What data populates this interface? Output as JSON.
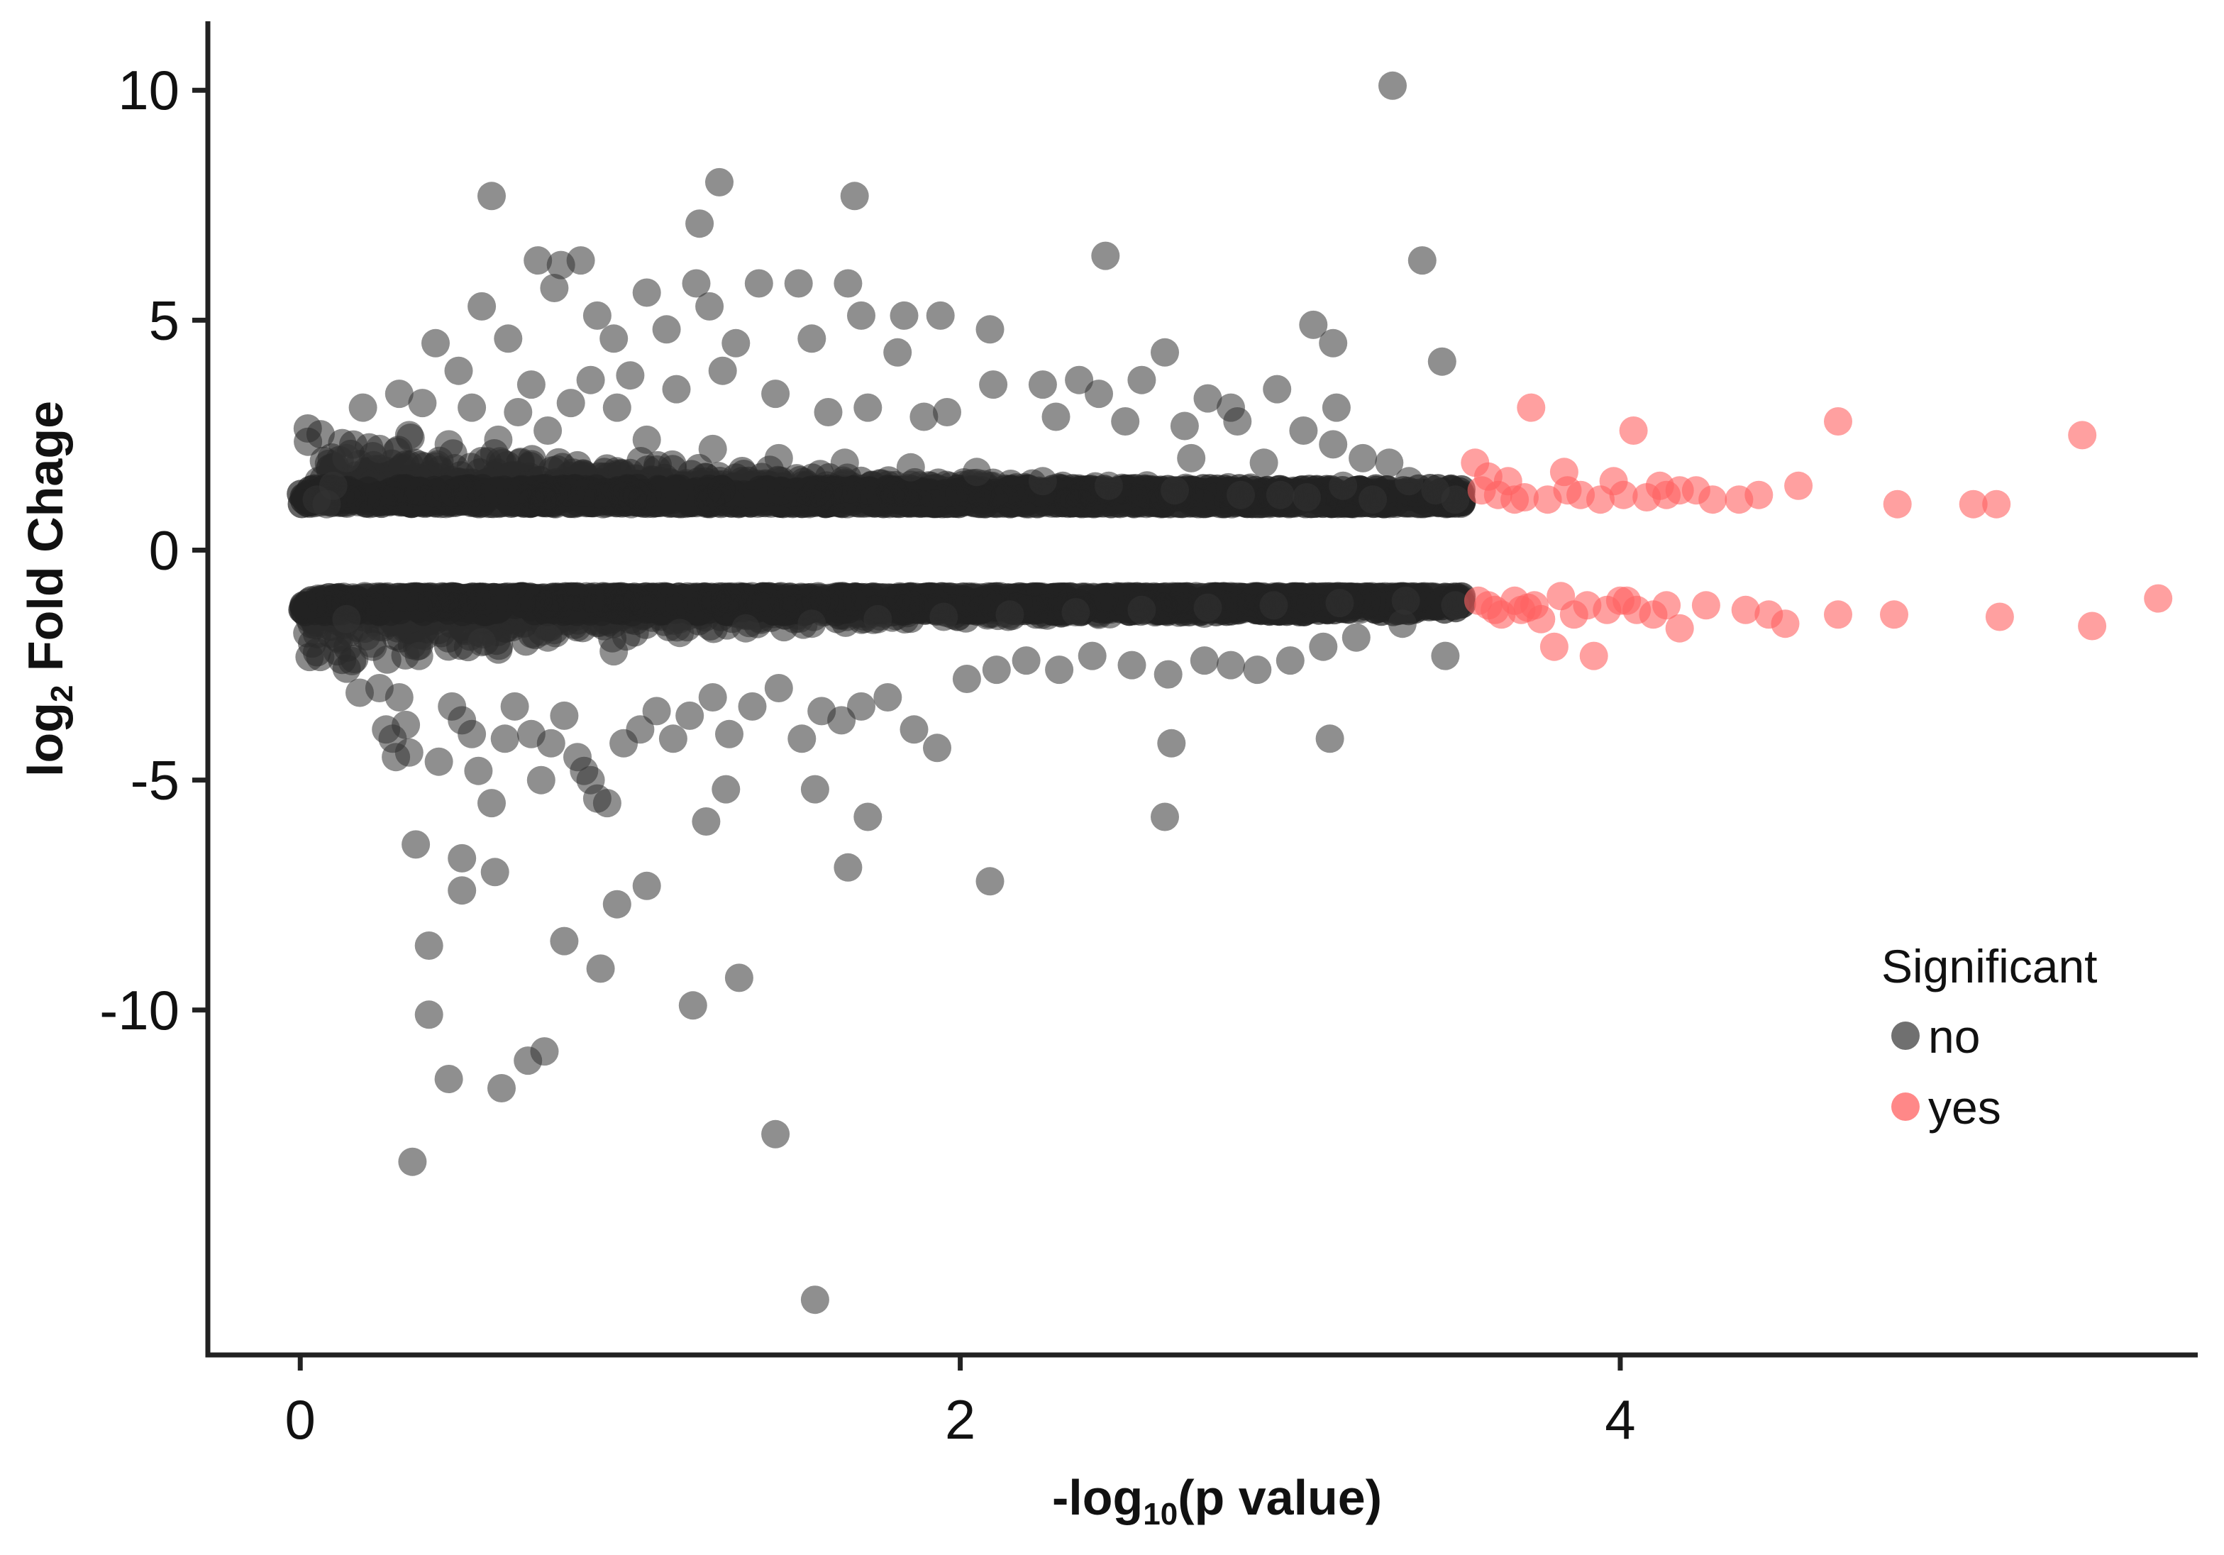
{
  "chart_data": {
    "type": "scatter",
    "title": "",
    "xlabel": {
      "prefix": "-log",
      "sub": "10",
      "suffix": "(p value)"
    },
    "ylabel": {
      "prefix": "log",
      "sub": "2",
      "suffix": " Fold Chage"
    },
    "xlim": [
      -0.28,
      5.75
    ],
    "ylim": [
      -17.5,
      11.5
    ],
    "x_ticks": [
      0,
      2,
      4
    ],
    "x_tick_labels": [
      "0",
      "2",
      "4"
    ],
    "y_ticks": [
      10,
      5,
      0,
      -5,
      -10
    ],
    "y_tick_labels": [
      "10",
      "5",
      "0",
      "-5",
      "-10"
    ],
    "grid": false,
    "legend": {
      "title": "Significant",
      "position": "right",
      "entries": [
        {
          "label": "no",
          "color": "#333333"
        },
        {
          "label": "yes",
          "color": "#ff6060"
        }
      ]
    },
    "series": [
      {
        "name": "no",
        "color": "#333333",
        "opacity": 0.55,
        "points": [
          [
            3.31,
            10.1
          ],
          [
            0.58,
            7.7
          ],
          [
            1.27,
            8.0
          ],
          [
            1.68,
            7.7
          ],
          [
            1.21,
            7.1
          ],
          [
            2.44,
            6.4
          ],
          [
            3.4,
            6.3
          ],
          [
            0.72,
            6.3
          ],
          [
            0.79,
            6.2
          ],
          [
            0.85,
            6.3
          ],
          [
            0.77,
            5.7
          ],
          [
            0.55,
            5.3
          ],
          [
            1.05,
            5.6
          ],
          [
            1.2,
            5.8
          ],
          [
            1.39,
            5.8
          ],
          [
            1.51,
            5.8
          ],
          [
            1.66,
            5.8
          ],
          [
            1.7,
            5.1
          ],
          [
            1.83,
            5.1
          ],
          [
            1.94,
            5.1
          ],
          [
            0.9,
            5.1
          ],
          [
            1.11,
            4.8
          ],
          [
            1.24,
            5.3
          ],
          [
            3.07,
            4.9
          ],
          [
            3.13,
            4.5
          ],
          [
            3.46,
            4.1
          ],
          [
            0.41,
            4.5
          ],
          [
            0.63,
            4.6
          ],
          [
            0.95,
            4.6
          ],
          [
            1.32,
            4.5
          ],
          [
            1.55,
            4.6
          ],
          [
            2.09,
            4.8
          ],
          [
            2.62,
            4.3
          ],
          [
            1.81,
            4.3
          ],
          [
            2.25,
            3.6
          ],
          [
            2.36,
            3.7
          ],
          [
            2.55,
            3.7
          ],
          [
            2.75,
            3.3
          ],
          [
            2.82,
            3.1
          ],
          [
            2.96,
            3.5
          ],
          [
            3.14,
            3.1
          ],
          [
            2.42,
            3.4
          ],
          [
            2.1,
            3.6
          ],
          [
            1.96,
            3.0
          ],
          [
            1.89,
            2.9
          ],
          [
            1.72,
            3.1
          ],
          [
            1.6,
            3.0
          ],
          [
            2.29,
            2.9
          ],
          [
            2.5,
            2.8
          ],
          [
            2.68,
            2.7
          ],
          [
            2.84,
            2.8
          ],
          [
            3.04,
            2.6
          ],
          [
            0.48,
            3.9
          ],
          [
            0.7,
            3.6
          ],
          [
            0.88,
            3.7
          ],
          [
            1.0,
            3.8
          ],
          [
            1.14,
            3.5
          ],
          [
            1.28,
            3.9
          ],
          [
            1.44,
            3.4
          ],
          [
            0.3,
            3.4
          ],
          [
            0.37,
            3.2
          ],
          [
            0.52,
            3.1
          ],
          [
            0.66,
            3.0
          ],
          [
            0.82,
            3.2
          ],
          [
            0.96,
            3.1
          ],
          [
            3.13,
            2.3
          ],
          [
            3.22,
            2.0
          ],
          [
            3.3,
            1.9
          ],
          [
            3.36,
            1.5
          ],
          [
            3.44,
            1.3
          ],
          [
            3.5,
            1.1
          ],
          [
            3.16,
            1.4
          ],
          [
            2.92,
            1.9
          ],
          [
            2.7,
            2.0
          ],
          [
            2.97,
            1.2
          ],
          [
            0.19,
            3.1
          ],
          [
            0.14,
            2.0
          ],
          [
            0.1,
            1.4
          ],
          [
            0.08,
            1.0
          ],
          [
            0.05,
            1.1
          ],
          [
            0.24,
            2.2
          ],
          [
            0.33,
            2.5
          ],
          [
            0.45,
            2.3
          ],
          [
            0.6,
            2.4
          ],
          [
            0.75,
            2.6
          ],
          [
            1.05,
            2.4
          ],
          [
            1.25,
            2.2
          ],
          [
            1.45,
            2.0
          ],
          [
            1.65,
            1.9
          ],
          [
            1.85,
            1.8
          ],
          [
            2.05,
            1.7
          ],
          [
            2.25,
            1.5
          ],
          [
            2.45,
            1.4
          ],
          [
            2.65,
            1.3
          ],
          [
            2.85,
            1.2
          ],
          [
            3.05,
            1.15
          ],
          [
            3.25,
            1.1
          ],
          [
            0.18,
            -3.1
          ],
          [
            0.24,
            -3.0
          ],
          [
            0.3,
            -3.2
          ],
          [
            0.26,
            -3.9
          ],
          [
            0.28,
            -4.1
          ],
          [
            0.32,
            -3.8
          ],
          [
            0.33,
            -4.4
          ],
          [
            0.29,
            -4.5
          ],
          [
            0.42,
            -4.6
          ],
          [
            0.46,
            -3.4
          ],
          [
            0.49,
            -3.7
          ],
          [
            0.52,
            -4.0
          ],
          [
            0.54,
            -4.8
          ],
          [
            0.58,
            -5.5
          ],
          [
            0.62,
            -4.1
          ],
          [
            0.65,
            -3.4
          ],
          [
            0.7,
            -4.0
          ],
          [
            0.73,
            -5.0
          ],
          [
            0.76,
            -4.2
          ],
          [
            0.8,
            -3.6
          ],
          [
            0.84,
            -4.5
          ],
          [
            0.86,
            -4.8
          ],
          [
            0.88,
            -5.0
          ],
          [
            0.9,
            -5.4
          ],
          [
            0.93,
            -5.5
          ],
          [
            0.98,
            -4.2
          ],
          [
            1.03,
            -3.9
          ],
          [
            1.08,
            -3.5
          ],
          [
            1.13,
            -4.1
          ],
          [
            1.18,
            -3.6
          ],
          [
            1.25,
            -3.2
          ],
          [
            1.3,
            -4.0
          ],
          [
            1.37,
            -3.4
          ],
          [
            1.45,
            -3.0
          ],
          [
            1.52,
            -4.1
          ],
          [
            1.58,
            -3.5
          ],
          [
            1.64,
            -3.7
          ],
          [
            1.7,
            -3.4
          ],
          [
            1.78,
            -3.2
          ],
          [
            1.86,
            -3.9
          ],
          [
            1.93,
            -4.3
          ],
          [
            2.02,
            -2.8
          ],
          [
            2.11,
            -2.6
          ],
          [
            2.2,
            -2.4
          ],
          [
            2.3,
            -2.6
          ],
          [
            2.4,
            -2.3
          ],
          [
            2.52,
            -2.5
          ],
          [
            2.63,
            -2.7
          ],
          [
            2.74,
            -2.4
          ],
          [
            2.82,
            -2.5
          ],
          [
            2.9,
            -2.6
          ],
          [
            3.0,
            -2.4
          ],
          [
            3.1,
            -2.1
          ],
          [
            3.2,
            -1.9
          ],
          [
            3.34,
            -1.6
          ],
          [
            3.47,
            -2.3
          ],
          [
            3.12,
            -4.1
          ],
          [
            2.64,
            -4.2
          ],
          [
            2.62,
            -5.8
          ],
          [
            1.56,
            -5.2
          ],
          [
            1.72,
            -5.8
          ],
          [
            1.66,
            -6.9
          ],
          [
            2.09,
            -7.2
          ],
          [
            1.23,
            -5.9
          ],
          [
            1.29,
            -5.2
          ],
          [
            0.35,
            -6.4
          ],
          [
            0.49,
            -6.7
          ],
          [
            0.59,
            -7.0
          ],
          [
            0.49,
            -7.4
          ],
          [
            0.96,
            -7.7
          ],
          [
            1.05,
            -7.3
          ],
          [
            0.39,
            -8.6
          ],
          [
            0.8,
            -8.5
          ],
          [
            0.91,
            -9.1
          ],
          [
            1.33,
            -9.3
          ],
          [
            1.19,
            -9.9
          ],
          [
            0.39,
            -10.1
          ],
          [
            0.45,
            -11.5
          ],
          [
            0.61,
            -11.7
          ],
          [
            0.69,
            -11.1
          ],
          [
            0.74,
            -10.9
          ],
          [
            0.34,
            -13.3
          ],
          [
            1.44,
            -12.7
          ],
          [
            1.56,
            -16.3
          ],
          [
            0.14,
            -1.5
          ],
          [
            0.22,
            -2.1
          ],
          [
            0.36,
            -2.3
          ],
          [
            0.55,
            -2.0
          ],
          [
            0.75,
            -1.9
          ],
          [
            0.95,
            -2.2
          ],
          [
            1.15,
            -1.8
          ],
          [
            1.35,
            -1.7
          ],
          [
            1.55,
            -1.6
          ],
          [
            1.75,
            -1.5
          ],
          [
            1.95,
            -1.45
          ],
          [
            2.15,
            -1.4
          ],
          [
            2.35,
            -1.35
          ],
          [
            2.55,
            -1.3
          ],
          [
            2.75,
            -1.25
          ],
          [
            2.95,
            -1.2
          ],
          [
            3.15,
            -1.15
          ],
          [
            3.35,
            -1.1
          ],
          [
            3.5,
            -1.2
          ]
        ]
      },
      {
        "name": "yes",
        "color": "#ff6060",
        "opacity": 0.6,
        "points": [
          [
            3.73,
            3.1
          ],
          [
            4.04,
            2.6
          ],
          [
            4.66,
            2.8
          ],
          [
            5.4,
            2.5
          ],
          [
            3.56,
            1.9
          ],
          [
            3.6,
            1.6
          ],
          [
            3.66,
            1.5
          ],
          [
            3.83,
            1.7
          ],
          [
            3.98,
            1.5
          ],
          [
            4.12,
            1.4
          ],
          [
            4.23,
            1.3
          ],
          [
            4.36,
            1.1
          ],
          [
            4.54,
            1.4
          ],
          [
            4.84,
            1.0
          ],
          [
            5.07,
            1.0
          ],
          [
            5.14,
            1.0
          ],
          [
            3.58,
            1.3
          ],
          [
            3.68,
            1.1
          ],
          [
            3.78,
            1.1
          ],
          [
            3.88,
            1.2
          ],
          [
            3.94,
            1.1
          ],
          [
            4.01,
            1.2
          ],
          [
            4.08,
            1.15
          ],
          [
            4.18,
            1.3
          ],
          [
            4.28,
            1.1
          ],
          [
            4.42,
            1.2
          ],
          [
            3.63,
            1.2
          ],
          [
            3.71,
            1.15
          ],
          [
            3.84,
            1.3
          ],
          [
            4.14,
            1.2
          ],
          [
            3.57,
            -1.1
          ],
          [
            3.64,
            -1.4
          ],
          [
            3.7,
            -1.3
          ],
          [
            3.76,
            -1.5
          ],
          [
            3.8,
            -2.1
          ],
          [
            3.92,
            -2.3
          ],
          [
            3.86,
            -1.4
          ],
          [
            3.96,
            -1.3
          ],
          [
            4.02,
            -1.1
          ],
          [
            4.1,
            -1.4
          ],
          [
            4.18,
            -1.7
          ],
          [
            4.26,
            -1.2
          ],
          [
            4.38,
            -1.3
          ],
          [
            4.5,
            -1.6
          ],
          [
            4.66,
            -1.4
          ],
          [
            4.83,
            -1.4
          ],
          [
            5.15,
            -1.45
          ],
          [
            5.43,
            -1.65
          ],
          [
            5.63,
            -1.05
          ],
          [
            3.6,
            -1.2
          ],
          [
            3.68,
            -1.1
          ],
          [
            3.74,
            -1.2
          ],
          [
            3.82,
            -1.0
          ],
          [
            3.9,
            -1.2
          ],
          [
            4.05,
            -1.3
          ],
          [
            4.14,
            -1.2
          ],
          [
            4.45,
            -1.4
          ],
          [
            3.62,
            -1.3
          ],
          [
            3.72,
            -1.25
          ],
          [
            4.0,
            -1.1
          ]
        ]
      }
    ],
    "band_summary": "dense",
    "density_bands": [
      {
        "sign": 1,
        "min_abs_fc": 1.0
      },
      {
        "sign": -1,
        "min_abs_fc": 1.0
      }
    ]
  }
}
